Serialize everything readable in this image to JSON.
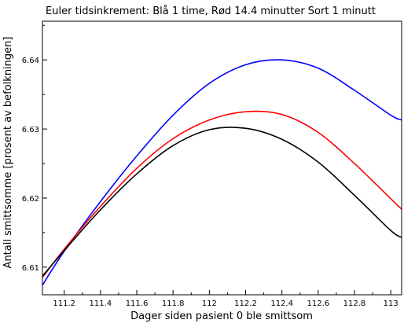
{
  "chart_data": {
    "type": "line",
    "title": "Euler tidsinkrement: Blå 1 time, Rød 14.4 minutter Sort 1 minutt",
    "xlabel": "Dager siden pasient 0 ble smittsom",
    "ylabel": "Antall smittsomme [prosent av befolkningen]",
    "xlim": [
      111.08,
      113.06
    ],
    "ylim": [
      6.606,
      6.6456
    ],
    "grid": false,
    "x_ticks": [
      111.2,
      111.4,
      111.6,
      111.8,
      112,
      112.2,
      112.4,
      112.6,
      112.8,
      113
    ],
    "x_tick_labels": [
      "111.2",
      "111.4",
      "111.6",
      "111.8",
      "112",
      "112.2",
      "112.4",
      "112.6",
      "112.8",
      "113"
    ],
    "y_ticks": [
      6.61,
      6.62,
      6.63,
      6.64
    ],
    "y_tick_labels": [
      "6.61",
      "6.62",
      "6.63",
      "6.64"
    ],
    "series": [
      {
        "color": "#0000ff",
        "x": [
          111.08,
          111.2,
          111.4,
          111.6,
          111.8,
          112.0,
          112.2,
          112.4,
          112.6,
          112.8,
          113.0,
          113.06
        ],
        "y": [
          6.6074,
          6.6123,
          6.6195,
          6.6261,
          6.632,
          6.6366,
          6.6393,
          6.64,
          6.6388,
          6.6356,
          6.632,
          6.6313
        ]
      },
      {
        "color": "#ff0000",
        "x": [
          111.08,
          111.2,
          111.4,
          111.6,
          111.8,
          112.0,
          112.2,
          112.4,
          112.6,
          112.8,
          113.0,
          113.06
        ],
        "y": [
          6.6085,
          6.6126,
          6.6188,
          6.6243,
          6.6286,
          6.6313,
          6.6325,
          6.6321,
          6.6295,
          6.625,
          6.6199,
          6.6184
        ]
      },
      {
        "color": "#000000",
        "x": [
          111.08,
          111.2,
          111.4,
          111.6,
          111.8,
          112.0,
          112.2,
          112.4,
          112.6,
          112.8,
          113.0,
          113.06
        ],
        "y": [
          6.6087,
          6.6124,
          6.6183,
          6.6235,
          6.6276,
          6.6299,
          6.6301,
          6.6285,
          6.6252,
          6.6204,
          6.6153,
          6.6143
        ]
      }
    ]
  }
}
